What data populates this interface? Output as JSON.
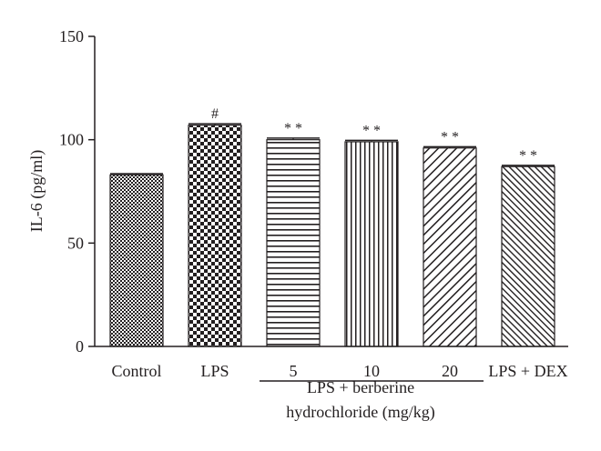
{
  "chart_data": {
    "type": "bar",
    "title": "",
    "xlabel": "",
    "ylabel": "IL-6 (pg/ml)",
    "ylim": [
      0,
      150
    ],
    "yticks": [
      0,
      50,
      100,
      150
    ],
    "grid": false,
    "legend": "none",
    "categories": [
      "Control",
      "LPS",
      "5",
      "10",
      "20",
      "LPS + DEX"
    ],
    "values": [
      83,
      107,
      100,
      99,
      96,
      87
    ],
    "error": [
      0.6,
      0.7,
      0.8,
      0.7,
      0.6,
      0.6
    ],
    "significance": [
      "",
      "#",
      "**",
      "**",
      "**",
      "**"
    ],
    "patterns": [
      "fine-checker",
      "coarse-checker",
      "horizontal-lines",
      "vertical-lines",
      "diagonal-lines",
      "diagonal-lines-dense"
    ],
    "group_bracket": {
      "label_line1": "LPS + berberine",
      "label_line2": "hydrochloride (mg/kg)",
      "spans": [
        "5",
        "20"
      ]
    },
    "colors": {
      "ink": "#231f20",
      "fill": "#ffffff"
    }
  }
}
